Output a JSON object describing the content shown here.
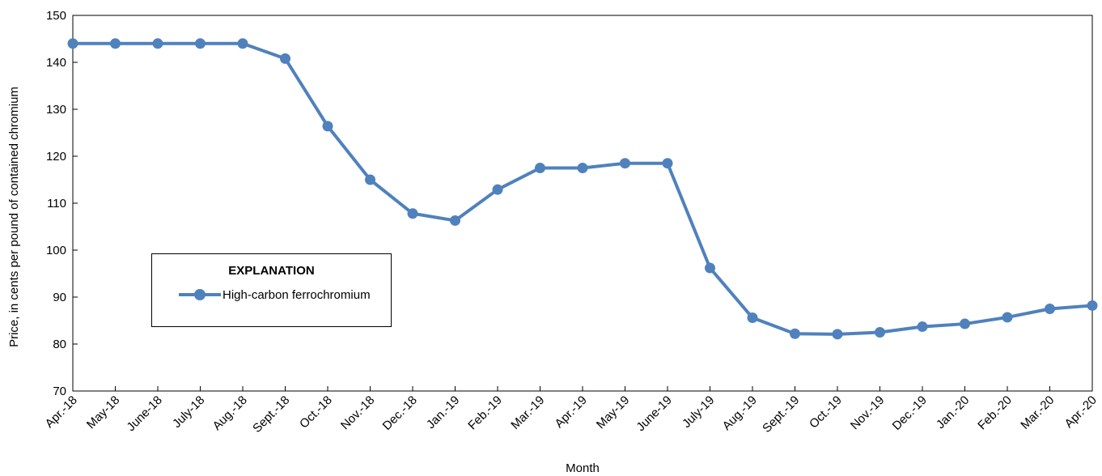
{
  "chart_data": {
    "type": "line",
    "title": "",
    "xlabel": "Month",
    "ylabel": "Price, in cents per pound of contained chromium",
    "ylim": [
      70,
      150
    ],
    "yticks": [
      70,
      80,
      90,
      100,
      110,
      120,
      130,
      140,
      150
    ],
    "grid": false,
    "legend_title": "EXPLANATION",
    "legend_position": "lower-left",
    "categories": [
      "Apr.-18",
      "May-18",
      "June-18",
      "July-18",
      "Aug.-18",
      "Sept.-18",
      "Oct.-18",
      "Nov.-18",
      "Dec.-18",
      "Jan.-19",
      "Feb.-19",
      "Mar.-19",
      "Apr.-19",
      "May-19",
      "June-19",
      "July-19",
      "Aug.-19",
      "Sept.-19",
      "Oct.-19",
      "Nov.-19",
      "Dec.-19",
      "Jan.-20",
      "Feb.-20",
      "Mar.-20",
      "Apr.-20"
    ],
    "series": [
      {
        "name": "High-carbon ferrochromium",
        "color": "#4f81bd",
        "values": [
          144,
          144,
          144,
          144,
          144,
          140.8,
          126.4,
          115,
          107.8,
          106.3,
          112.9,
          117.5,
          117.5,
          118.5,
          118.5,
          96.2,
          85.6,
          82.2,
          82.1,
          82.5,
          83.7,
          84.3,
          85.7,
          87.5,
          88.2
        ]
      }
    ]
  }
}
